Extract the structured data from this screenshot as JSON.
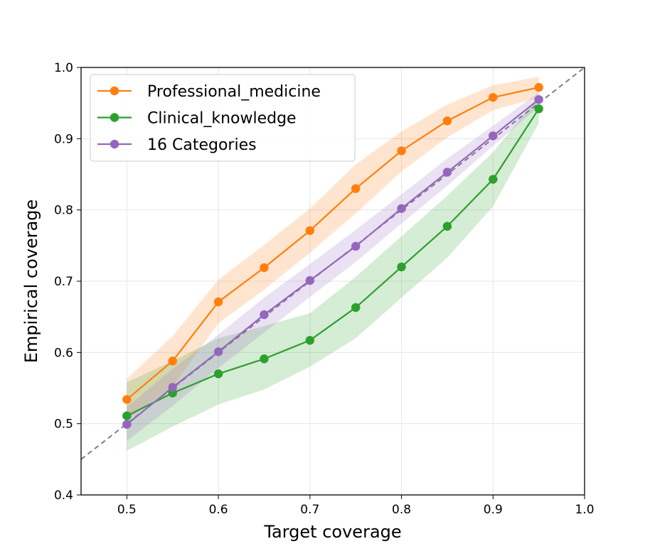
{
  "chart_data": {
    "type": "line",
    "xlabel": "Target coverage",
    "ylabel": "Empirical coverage",
    "xlim": [
      0.45,
      1.0
    ],
    "ylim": [
      0.4,
      1.0
    ],
    "xticks": [
      "0.5",
      "0.6",
      "0.7",
      "0.8",
      "0.9",
      "1.0"
    ],
    "yticks": [
      "0.4",
      "0.5",
      "0.6",
      "0.7",
      "0.8",
      "0.9",
      "1.0"
    ],
    "grid": true,
    "legend_position": "top-left",
    "reference_line": {
      "style": "dashed",
      "color": "#808080",
      "from": [
        0.45,
        0.45
      ],
      "to": [
        1.0,
        1.0
      ]
    },
    "x": [
      0.5,
      0.55,
      0.6,
      0.65,
      0.7,
      0.75,
      0.8,
      0.85,
      0.9,
      0.95
    ],
    "series": [
      {
        "name": "Professional_medicine",
        "color": "#ff7f0e",
        "values": [
          0.534,
          0.588,
          0.671,
          0.719,
          0.771,
          0.83,
          0.883,
          0.925,
          0.958,
          0.972
        ],
        "lower": [
          0.505,
          0.552,
          0.641,
          0.688,
          0.74,
          0.795,
          0.854,
          0.902,
          0.94,
          0.958
        ],
        "upper": [
          0.563,
          0.623,
          0.702,
          0.751,
          0.802,
          0.864,
          0.91,
          0.948,
          0.975,
          0.987
        ]
      },
      {
        "name": "Clinical_knowledge",
        "color": "#2ca02c",
        "values": [
          0.511,
          0.543,
          0.57,
          0.591,
          0.617,
          0.663,
          0.72,
          0.777,
          0.843,
          0.942
        ],
        "lower": [
          0.462,
          0.496,
          0.527,
          0.548,
          0.58,
          0.62,
          0.677,
          0.733,
          0.805,
          0.922
        ],
        "upper": [
          0.558,
          0.588,
          0.62,
          0.637,
          0.655,
          0.706,
          0.763,
          0.82,
          0.881,
          0.96
        ]
      },
      {
        "name": "16 Categories",
        "color": "#9467bd",
        "values": [
          0.499,
          0.551,
          0.601,
          0.653,
          0.701,
          0.749,
          0.802,
          0.853,
          0.904,
          0.955
        ],
        "lower": [
          0.476,
          0.525,
          0.578,
          0.628,
          0.678,
          0.727,
          0.781,
          0.834,
          0.89,
          0.945
        ],
        "upper": [
          0.523,
          0.577,
          0.625,
          0.677,
          0.724,
          0.772,
          0.822,
          0.872,
          0.918,
          0.965
        ]
      }
    ]
  }
}
